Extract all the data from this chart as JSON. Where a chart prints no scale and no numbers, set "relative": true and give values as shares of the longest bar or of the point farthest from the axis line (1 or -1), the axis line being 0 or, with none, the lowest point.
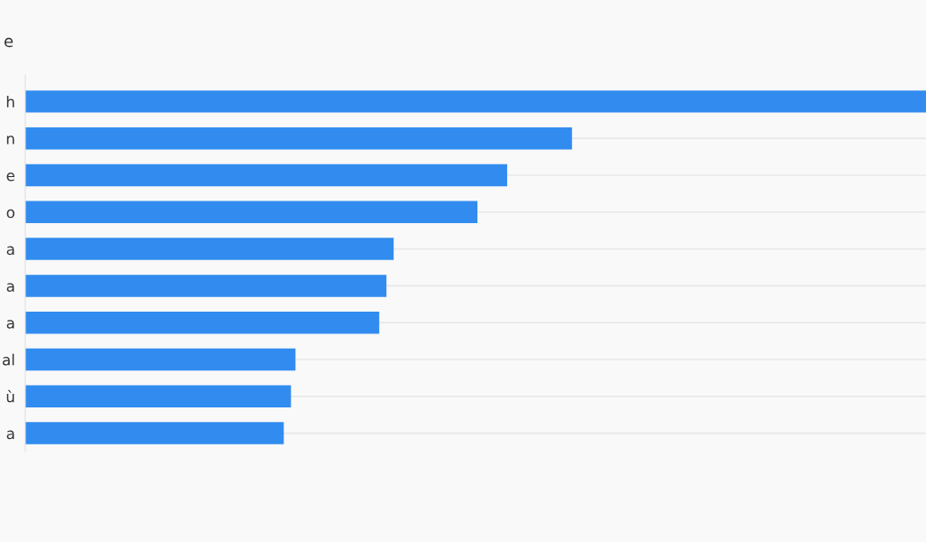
{
  "chart_data": {
    "type": "bar",
    "orientation": "horizontal",
    "relative": true,
    "title": "e",
    "categories": [
      "h",
      "n",
      "e",
      "o",
      "a",
      "a",
      "a",
      "al",
      "ù",
      "a"
    ],
    "values": [
      1,
      0.607,
      0.535,
      0.502,
      0.409,
      0.401,
      0.393,
      0.3,
      0.295,
      0.287
    ],
    "color": "#328cf0",
    "grid": "y",
    "legend": false
  }
}
